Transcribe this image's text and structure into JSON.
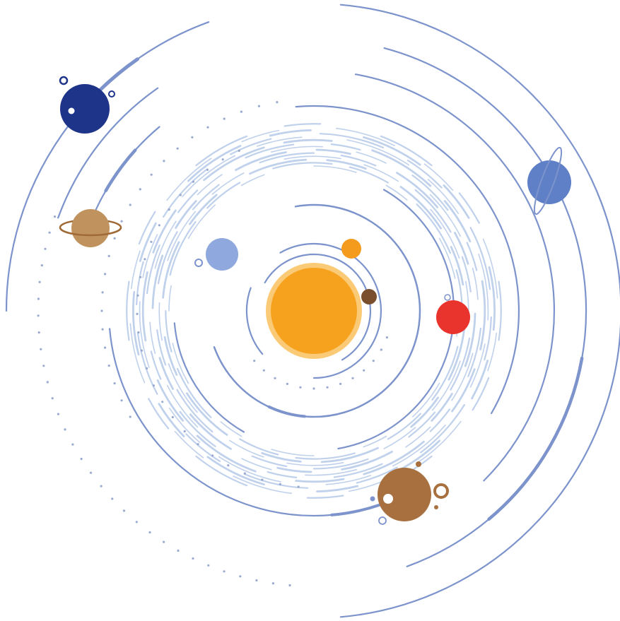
{
  "scene": {
    "background": "#ffffff",
    "orbit_color": "#7c93cc",
    "belt_color": "#b9ccea",
    "dot_color": "#9aabcf"
  },
  "bodies": [
    {
      "name": "sun",
      "color": "#f6a21e",
      "edge": "#f8b84a"
    },
    {
      "name": "mercury",
      "color": "#7a4f2e"
    },
    {
      "name": "venus",
      "color": "#f49a1c"
    },
    {
      "name": "earth",
      "color": "#8fa8dd"
    },
    {
      "name": "mars",
      "color": "#e8342c"
    },
    {
      "name": "jupiter",
      "color": "#a8703f"
    },
    {
      "name": "saturn",
      "color": "#c0925e",
      "ring": "#a06a36"
    },
    {
      "name": "uranus",
      "color": "#5f80c7",
      "ring": "#7c93cc"
    },
    {
      "name": "neptune",
      "color": "#1e3489"
    }
  ]
}
